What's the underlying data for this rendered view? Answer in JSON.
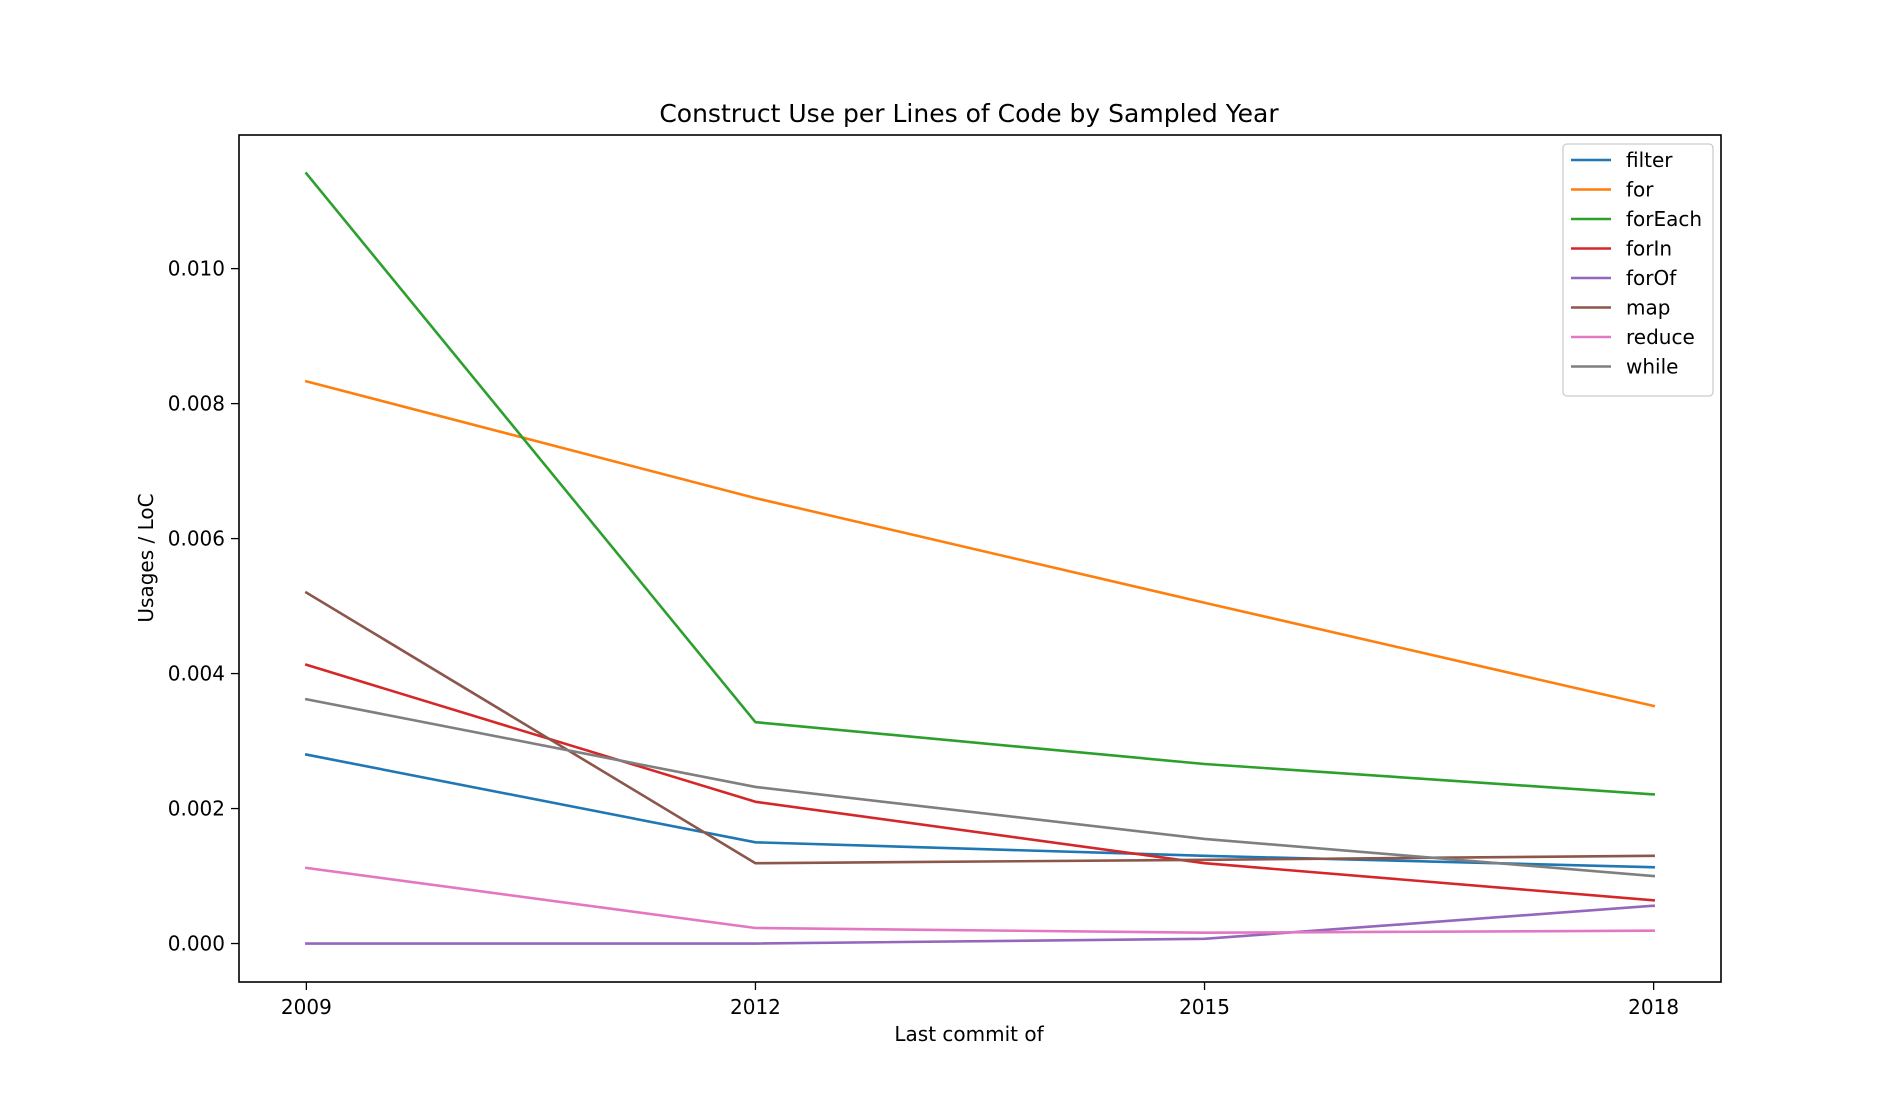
{
  "chart_data": {
    "type": "line",
    "title": "Construct Use per Lines of Code by Sampled Year",
    "xlabel": "Last commit of",
    "ylabel": "Usages / LoC",
    "x": [
      "2009",
      "2012",
      "2015",
      "2018"
    ],
    "xlim": [
      2008.55,
      2018.45
    ],
    "ylim": [
      -0.00057,
      0.01198
    ],
    "yticks": [
      "0.000",
      "0.002",
      "0.004",
      "0.006",
      "0.008",
      "0.010"
    ],
    "grid": false,
    "legend_position": "top-right",
    "series": [
      {
        "name": "filter",
        "color": "#1f77b4",
        "values": [
          0.0028,
          0.0015,
          0.0013,
          0.00113
        ]
      },
      {
        "name": "for",
        "color": "#ff7f0e",
        "values": [
          0.00833,
          0.0066,
          0.00505,
          0.00352
        ]
      },
      {
        "name": "forEach",
        "color": "#2ca02c",
        "values": [
          0.01141,
          0.00328,
          0.00266,
          0.00221
        ]
      },
      {
        "name": "forIn",
        "color": "#d62728",
        "values": [
          0.00413,
          0.0021,
          0.00119,
          0.00064
        ]
      },
      {
        "name": "forOf",
        "color": "#9467bd",
        "values": [
          0.0,
          0.0,
          7e-05,
          0.00056
        ]
      },
      {
        "name": "map",
        "color": "#8c564b",
        "values": [
          0.0052,
          0.00119,
          0.00124,
          0.0013
        ]
      },
      {
        "name": "reduce",
        "color": "#e377c2",
        "values": [
          0.00112,
          0.00023,
          0.00016,
          0.00019
        ]
      },
      {
        "name": "while",
        "color": "#7f7f7f",
        "values": [
          0.00362,
          0.00232,
          0.00155,
          0.001
        ]
      }
    ]
  }
}
